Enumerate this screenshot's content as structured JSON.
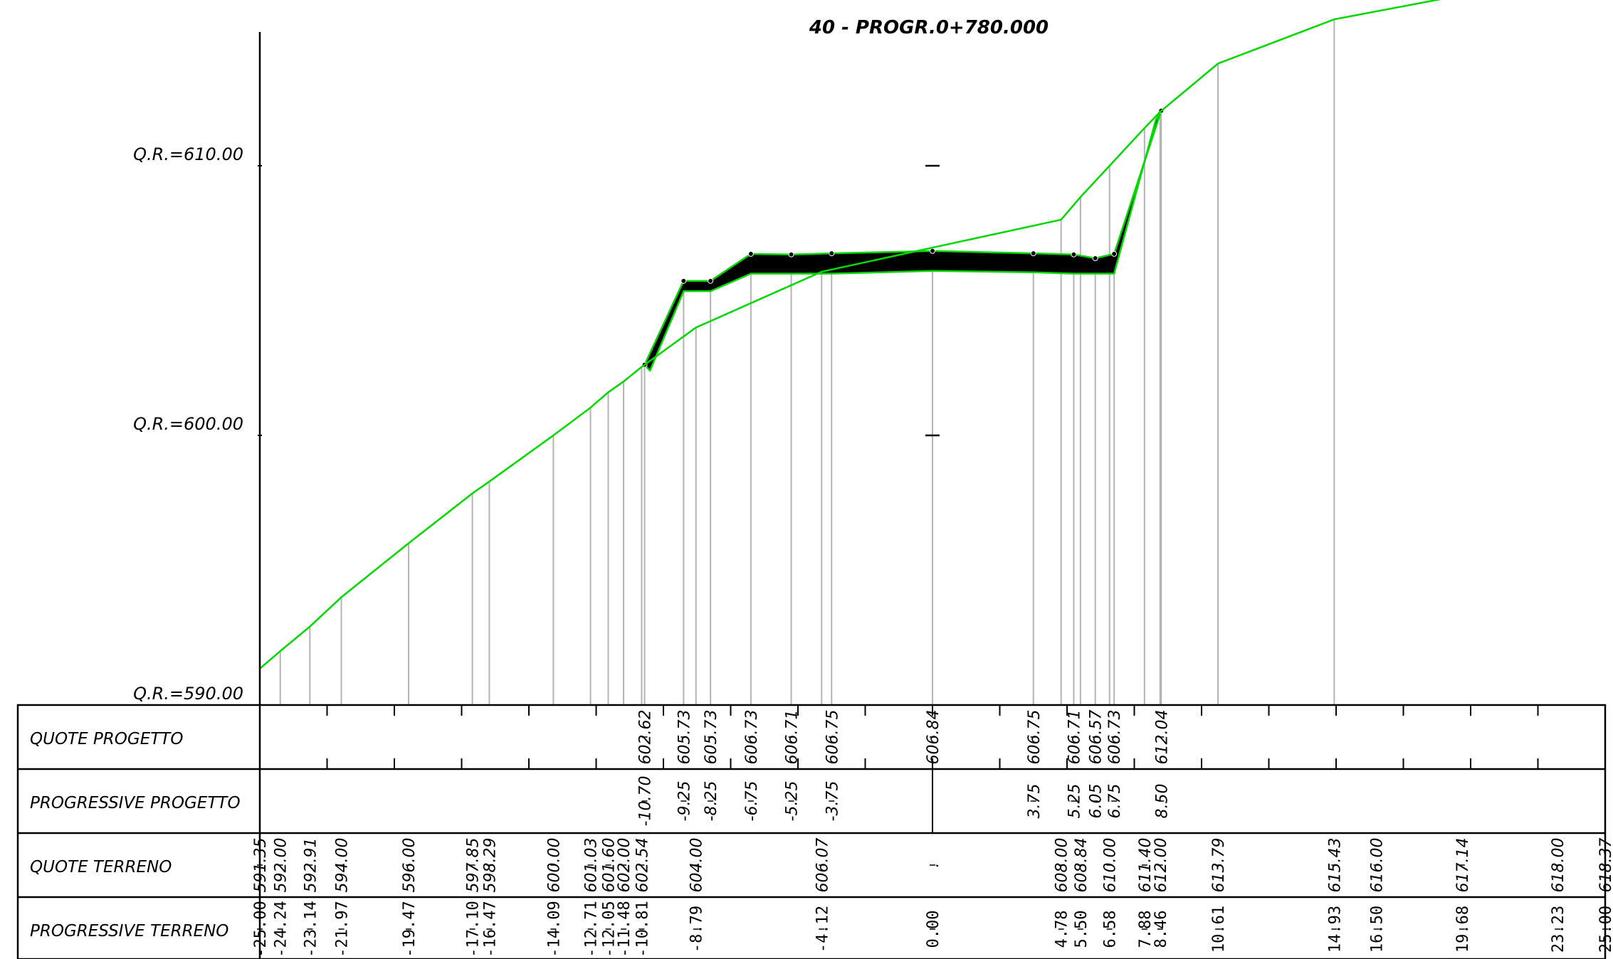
{
  "title": "40 - PROGR.0+780.000",
  "elevation_labels": [
    {
      "id": "qr-610",
      "text": "Q.R.=610.00",
      "value": 610
    },
    {
      "id": "qr-600",
      "text": "Q.R.=600.00",
      "value": 600
    },
    {
      "id": "qr-590",
      "text": "Q.R.=590.00",
      "value": 590
    }
  ],
  "table_rows": [
    {
      "id": "quote-progetto",
      "label": "QUOTE PROGETTO"
    },
    {
      "id": "progressive-progetto",
      "label": "PROGRESSIVE PROGETTO"
    },
    {
      "id": "quote-terreno",
      "label": "QUOTE TERRENO"
    },
    {
      "id": "progressive-terreno",
      "label": "PROGRESSIVE TERRENO"
    }
  ],
  "colors": {
    "terrain": "#00d800",
    "project_fill": "#000000",
    "guide_lines": "#b4b4b4",
    "grid": "#000000"
  },
  "quote_progetto": [
    {
      "x": -10.7,
      "text": "602.62"
    },
    {
      "x": -9.25,
      "text": "605.73"
    },
    {
      "x": -8.25,
      "text": "605.73"
    },
    {
      "x": -6.75,
      "text": "606.73"
    },
    {
      "x": -5.25,
      "text": "606.71"
    },
    {
      "x": -3.75,
      "text": "606.75"
    },
    {
      "x": 0.0,
      "text": "606.84"
    },
    {
      "x": 3.75,
      "text": "606.75"
    },
    {
      "x": 5.25,
      "text": "606.71"
    },
    {
      "x": 6.05,
      "text": "606.57"
    },
    {
      "x": 6.75,
      "text": "606.73"
    },
    {
      "x": 8.5,
      "text": "612.04"
    }
  ],
  "progressive_progetto": [
    {
      "x": -10.7,
      "text": "-10.70"
    },
    {
      "x": -9.25,
      "text": "-9.25"
    },
    {
      "x": -8.25,
      "text": "-8.25"
    },
    {
      "x": -6.75,
      "text": "-6.75"
    },
    {
      "x": -5.25,
      "text": "-5.25"
    },
    {
      "x": -3.75,
      "text": "-3.75"
    },
    {
      "x": 3.75,
      "text": "3.75"
    },
    {
      "x": 5.25,
      "text": "5.25"
    },
    {
      "x": 6.05,
      "text": "6.05"
    },
    {
      "x": 6.75,
      "text": "6.75"
    },
    {
      "x": 8.5,
      "text": "8.50"
    }
  ],
  "quote_terreno": [
    {
      "x": -25.0,
      "text": "591.35"
    },
    {
      "x": -24.24,
      "text": "592.00"
    },
    {
      "x": -23.14,
      "text": "592.91"
    },
    {
      "x": -21.97,
      "text": "594.00"
    },
    {
      "x": -19.47,
      "text": "596.00"
    },
    {
      "x": -17.1,
      "text": "597.85"
    },
    {
      "x": -16.47,
      "text": "598.29"
    },
    {
      "x": -14.09,
      "text": "600.00"
    },
    {
      "x": -12.71,
      "text": "601.03"
    },
    {
      "x": -12.05,
      "text": "601.60"
    },
    {
      "x": -11.48,
      "text": "602.00"
    },
    {
      "x": -10.81,
      "text": "602.54"
    },
    {
      "x": -8.79,
      "text": "604.00"
    },
    {
      "x": -4.12,
      "text": "606.07"
    },
    {
      "x": 0.0,
      "text": "."
    },
    {
      "x": 4.78,
      "text": "608.00"
    },
    {
      "x": 5.5,
      "text": "608.84"
    },
    {
      "x": 6.58,
      "text": "610.00"
    },
    {
      "x": 7.88,
      "text": "611.40"
    },
    {
      "x": 8.46,
      "text": "612.00"
    },
    {
      "x": 10.61,
      "text": "613.79"
    },
    {
      "x": 14.93,
      "text": "615.43"
    },
    {
      "x": 16.5,
      "text": "616.00"
    },
    {
      "x": 19.68,
      "text": "617.14"
    },
    {
      "x": 23.23,
      "text": "618.00"
    },
    {
      "x": 25.0,
      "text": "618.37"
    }
  ],
  "progressive_terreno": [
    {
      "x": -25.0,
      "text": "-25.00"
    },
    {
      "x": -24.24,
      "text": "-24.24"
    },
    {
      "x": -23.14,
      "text": "-23.14"
    },
    {
      "x": -21.97,
      "text": "-21.97"
    },
    {
      "x": -19.47,
      "text": "-19.47"
    },
    {
      "x": -17.1,
      "text": "-17.10"
    },
    {
      "x": -16.47,
      "text": "-16.47"
    },
    {
      "x": -14.09,
      "text": "-14.09"
    },
    {
      "x": -12.71,
      "text": "-12.71"
    },
    {
      "x": -12.05,
      "text": "-12.05"
    },
    {
      "x": -11.48,
      "text": "-11.48"
    },
    {
      "x": -10.81,
      "text": "-10.81"
    },
    {
      "x": -8.79,
      "text": "-8.79"
    },
    {
      "x": -4.12,
      "text": "-4.12"
    },
    {
      "x": 0.0,
      "text": "0.00"
    },
    {
      "x": 4.78,
      "text": "4.78"
    },
    {
      "x": 5.5,
      "text": "5.50"
    },
    {
      "x": 6.58,
      "text": "6.58"
    },
    {
      "x": 7.88,
      "text": "7.88"
    },
    {
      "x": 8.46,
      "text": "8.46"
    },
    {
      "x": 10.61,
      "text": "10.61"
    },
    {
      "x": 14.93,
      "text": "14.93"
    },
    {
      "x": 16.5,
      "text": "16.50"
    },
    {
      "x": 19.68,
      "text": "19.68"
    },
    {
      "x": 23.23,
      "text": "23.23"
    },
    {
      "x": 25.0,
      "text": "25.00"
    }
  ],
  "terrain_profile": [
    {
      "x": -25.0,
      "z": 591.35
    },
    {
      "x": -24.24,
      "z": 592.0
    },
    {
      "x": -23.14,
      "z": 592.91
    },
    {
      "x": -21.97,
      "z": 594.0
    },
    {
      "x": -19.47,
      "z": 596.0
    },
    {
      "x": -17.1,
      "z": 597.85
    },
    {
      "x": -16.47,
      "z": 598.29
    },
    {
      "x": -14.09,
      "z": 600.0
    },
    {
      "x": -12.71,
      "z": 601.03
    },
    {
      "x": -12.05,
      "z": 601.6
    },
    {
      "x": -11.48,
      "z": 602.0
    },
    {
      "x": -10.81,
      "z": 602.54
    },
    {
      "x": -8.79,
      "z": 604.0
    },
    {
      "x": -4.12,
      "z": 606.07
    },
    {
      "x": 4.78,
      "z": 608.0
    },
    {
      "x": 5.5,
      "z": 608.84
    },
    {
      "x": 6.58,
      "z": 610.0
    },
    {
      "x": 7.88,
      "z": 611.4
    },
    {
      "x": 8.46,
      "z": 612.0
    },
    {
      "x": 10.61,
      "z": 613.79
    },
    {
      "x": 14.93,
      "z": 615.43
    }
  ],
  "project_top": [
    {
      "x": -10.7,
      "z": 602.62
    },
    {
      "x": -9.25,
      "z": 605.73
    },
    {
      "x": -8.25,
      "z": 605.73
    },
    {
      "x": -6.75,
      "z": 606.73
    },
    {
      "x": -5.25,
      "z": 606.71
    },
    {
      "x": -3.75,
      "z": 606.75
    },
    {
      "x": 0.0,
      "z": 606.84
    },
    {
      "x": 3.75,
      "z": 606.75
    },
    {
      "x": 5.25,
      "z": 606.71
    },
    {
      "x": 6.05,
      "z": 606.57
    },
    {
      "x": 6.75,
      "z": 606.73
    },
    {
      "x": 8.5,
      "z": 612.04
    }
  ],
  "project_bottom": [
    {
      "x": 8.3,
      "z": 611.7
    },
    {
      "x": 6.75,
      "z": 606.0
    },
    {
      "x": 6.05,
      "z": 606.0
    },
    {
      "x": 5.25,
      "z": 606.0
    },
    {
      "x": 3.75,
      "z": 606.05
    },
    {
      "x": 0.0,
      "z": 606.1
    },
    {
      "x": -3.75,
      "z": 606.0
    },
    {
      "x": -5.25,
      "z": 606.0
    },
    {
      "x": -6.75,
      "z": 606.0
    },
    {
      "x": -8.25,
      "z": 605.35
    },
    {
      "x": -9.25,
      "z": 605.35
    },
    {
      "x": -10.5,
      "z": 602.4
    }
  ]
}
